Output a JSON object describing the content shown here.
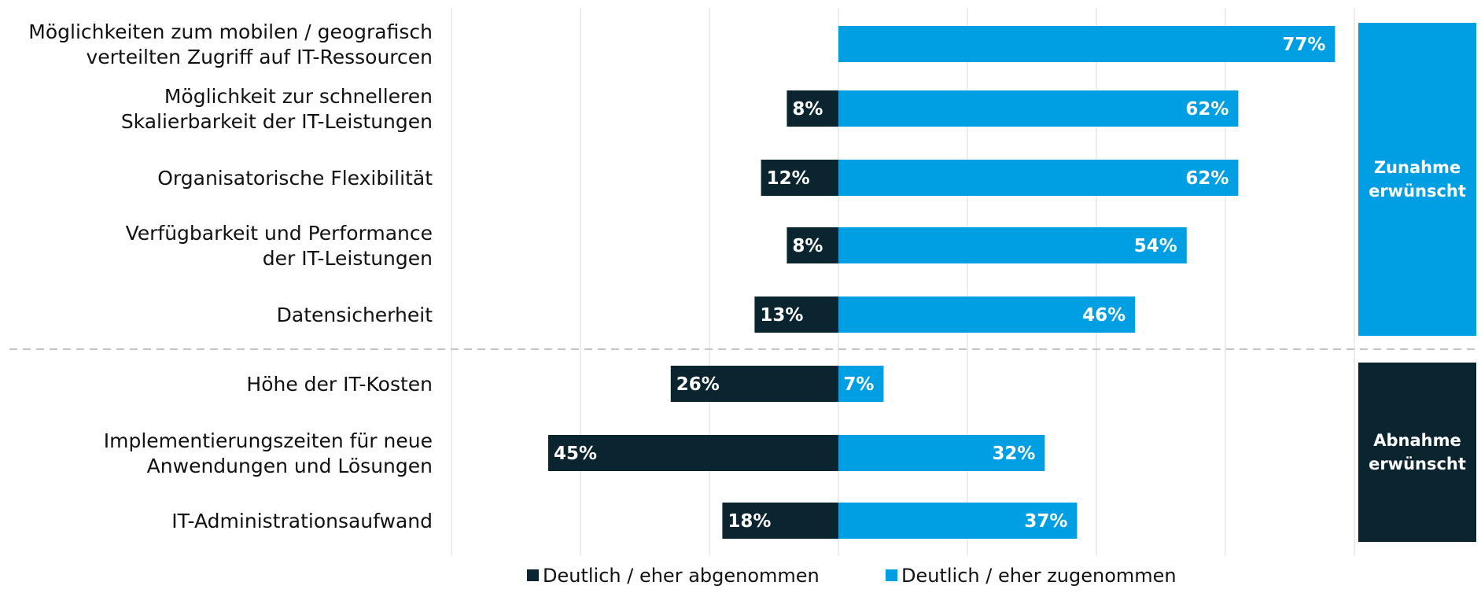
{
  "chart_data": {
    "type": "bar",
    "orientation": "horizontal-diverging",
    "categories": [
      [
        "Möglichkeiten zum mobilen / geografisch",
        "verteilten Zugriff auf IT-Ressourcen"
      ],
      [
        "Möglichkeit zur schnelleren",
        "Skalierbarkeit der IT-Leistungen"
      ],
      [
        "Organisatorische Flexibilität"
      ],
      [
        "Verfügbarkeit und Performance",
        "der IT-Leistungen"
      ],
      [
        "Datensicherheit"
      ],
      [
        "Höhe der IT-Kosten"
      ],
      [
        "Implementierungszeiten für neue",
        "Anwendungen und Lösungen"
      ],
      [
        "IT-Administrationsaufwand"
      ]
    ],
    "series": [
      {
        "name": "Deutlich / eher abgenommen",
        "color": "#0b2530",
        "values": [
          0,
          8,
          12,
          8,
          13,
          26,
          45,
          18
        ],
        "labels": [
          "",
          "8%",
          "12%",
          "8%",
          "13%",
          "26%",
          "45%",
          "18%"
        ]
      },
      {
        "name": "Deutlich / eher zugenommen",
        "color": "#009fe3",
        "values": [
          77,
          62,
          62,
          54,
          46,
          7,
          32,
          37
        ],
        "labels": [
          "77%",
          "62%",
          "62%",
          "54%",
          "46%",
          "7%",
          "32%",
          "37%"
        ]
      }
    ],
    "xlim": [
      -60,
      80
    ],
    "grid": true,
    "groups": [
      {
        "label": [
          "Zunahme",
          "erwünscht"
        ],
        "from": 0,
        "to": 4,
        "color": "#009fe3"
      },
      {
        "label": [
          "Abnahme",
          "erwünscht"
        ],
        "from": 5,
        "to": 7,
        "color": "#0b2530"
      }
    ],
    "legend_position": "bottom-center"
  }
}
